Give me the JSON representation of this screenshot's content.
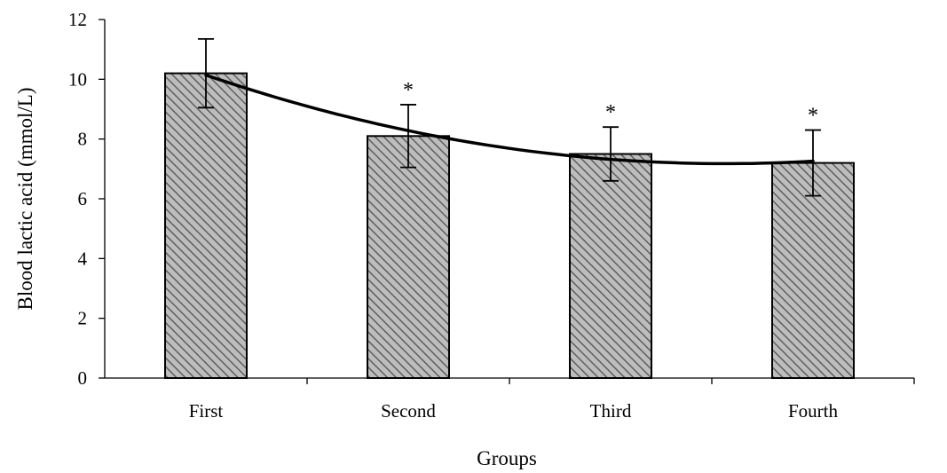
{
  "chart_data": {
    "type": "bar",
    "xlabel": "Groups",
    "ylabel": "Blood lactic acid (mmol/L)",
    "categories": [
      "First",
      "Second",
      "Third",
      "Fourth"
    ],
    "values": [
      10.2,
      8.1,
      7.5,
      7.2
    ],
    "error": [
      1.15,
      1.05,
      0.9,
      1.1
    ],
    "significance": [
      "",
      "*",
      "*",
      "*"
    ],
    "yticks": [
      "0",
      "2",
      "4",
      "6",
      "8",
      "10",
      "12"
    ],
    "ylim": [
      0,
      12
    ],
    "trendline": {
      "type": "polynomial",
      "order": 2
    },
    "grid": false,
    "colors": {
      "bar_fill": "#bdbdbd",
      "hatch": "#5e5e5e",
      "stroke": "#000000"
    }
  }
}
